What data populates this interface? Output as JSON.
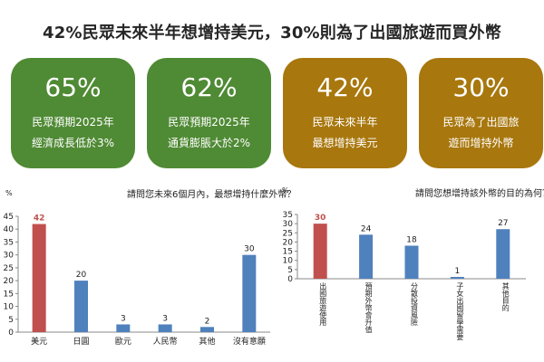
{
  "title": "42%民眾未來半年想增持美元，30%則為了出國旅遊而買外幣",
  "cards": [
    {
      "value": "65%",
      "line1": "民眾預期2025年",
      "line2": "經濟成長低於3%",
      "color": "#4f8a34"
    },
    {
      "value": "62%",
      "line1": "民眾預期2025年",
      "line2": "通貨膨脹大於2%",
      "color": "#4f8a34"
    },
    {
      "value": "42%",
      "line1": "民眾未來半年",
      "line2": "最想增持美元",
      "color": "#a8770d"
    },
    {
      "value": "30%",
      "line1": "民眾為了出國旅",
      "line2": "遊而增持外幣",
      "color": "#a8770d"
    }
  ],
  "chart_data": [
    {
      "type": "bar",
      "title": "請問您未來6個月內，最想增持什麼外幣？",
      "ylabel": "%",
      "ylim": [
        0,
        45
      ],
      "yticks": [
        0,
        5,
        10,
        15,
        20,
        25,
        30,
        35,
        40,
        45
      ],
      "categories": [
        "美元",
        "日圓",
        "歐元",
        "人民幣",
        "其他",
        "沒有意願"
      ],
      "values": [
        42,
        20,
        3,
        3,
        2,
        30
      ],
      "highlight_index": 0,
      "colors": {
        "bar": "#4f81bd",
        "highlight": "#c0504d"
      }
    },
    {
      "type": "bar",
      "title": "請問您想增持該外幣的目的為何？",
      "ylabel": "%",
      "ylim": [
        0,
        35
      ],
      "yticks": [
        0,
        5,
        10,
        15,
        20,
        25,
        30,
        35
      ],
      "categories": [
        "出國旅遊使用",
        "預期外幣會升值",
        "分散投資風險",
        "子女出國留學需要",
        "其他目的"
      ],
      "values": [
        30,
        24,
        18,
        1,
        27
      ],
      "highlight_index": 0,
      "colors": {
        "bar": "#4f81bd",
        "highlight": "#c0504d"
      }
    }
  ]
}
